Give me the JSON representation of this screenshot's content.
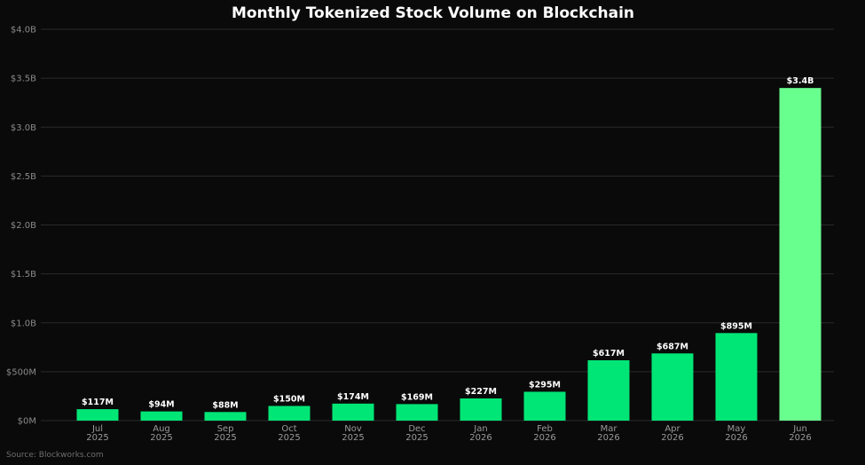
{
  "chart_data": {
    "type": "bar",
    "title": "Monthly Tokenized Stock Volume on Blockchain",
    "xlabel": "",
    "ylabel": "",
    "ylim": [
      0,
      4000000000
    ],
    "grid": true,
    "categories": [
      [
        "Jul",
        "2025"
      ],
      [
        "Aug",
        "2025"
      ],
      [
        "Sep",
        "2025"
      ],
      [
        "Oct",
        "2025"
      ],
      [
        "Nov",
        "2025"
      ],
      [
        "Dec",
        "2025"
      ],
      [
        "Jan",
        "2026"
      ],
      [
        "Feb",
        "2026"
      ],
      [
        "Mar",
        "2026"
      ],
      [
        "Apr",
        "2026"
      ],
      [
        "May",
        "2026"
      ],
      [
        "Jun",
        "2026"
      ]
    ],
    "values": [
      117000000,
      94000000,
      88000000,
      150000000,
      174000000,
      169000000,
      227000000,
      295000000,
      617000000,
      687000000,
      895000000,
      3400000000
    ],
    "data_labels": [
      "$117M",
      "$94M",
      "$88M",
      "$150M",
      "$174M",
      "$169M",
      "$227M",
      "$295M",
      "$617M",
      "$687M",
      "$895M",
      "$3.4B"
    ],
    "y_ticks": [
      {
        "value": 0,
        "label": "$0M"
      },
      {
        "value": 500000000,
        "label": "$500M"
      },
      {
        "value": 1000000000,
        "label": "$1.0B"
      },
      {
        "value": 1500000000,
        "label": "$1.5B"
      },
      {
        "value": 2000000000,
        "label": "$2.0B"
      },
      {
        "value": 2500000000,
        "label": "$2.5B"
      },
      {
        "value": 3000000000,
        "label": "$3.0B"
      },
      {
        "value": 3500000000,
        "label": "$3.5B"
      },
      {
        "value": 4000000000,
        "label": "$4.0B"
      }
    ],
    "colors": {
      "background": "#0a0a0a",
      "bar": "#00e676",
      "highlight_bar": "#69ff8f",
      "grid": "#2a2a2a"
    },
    "highlight_index": 11,
    "source": "Source: Blockworks.com"
  }
}
